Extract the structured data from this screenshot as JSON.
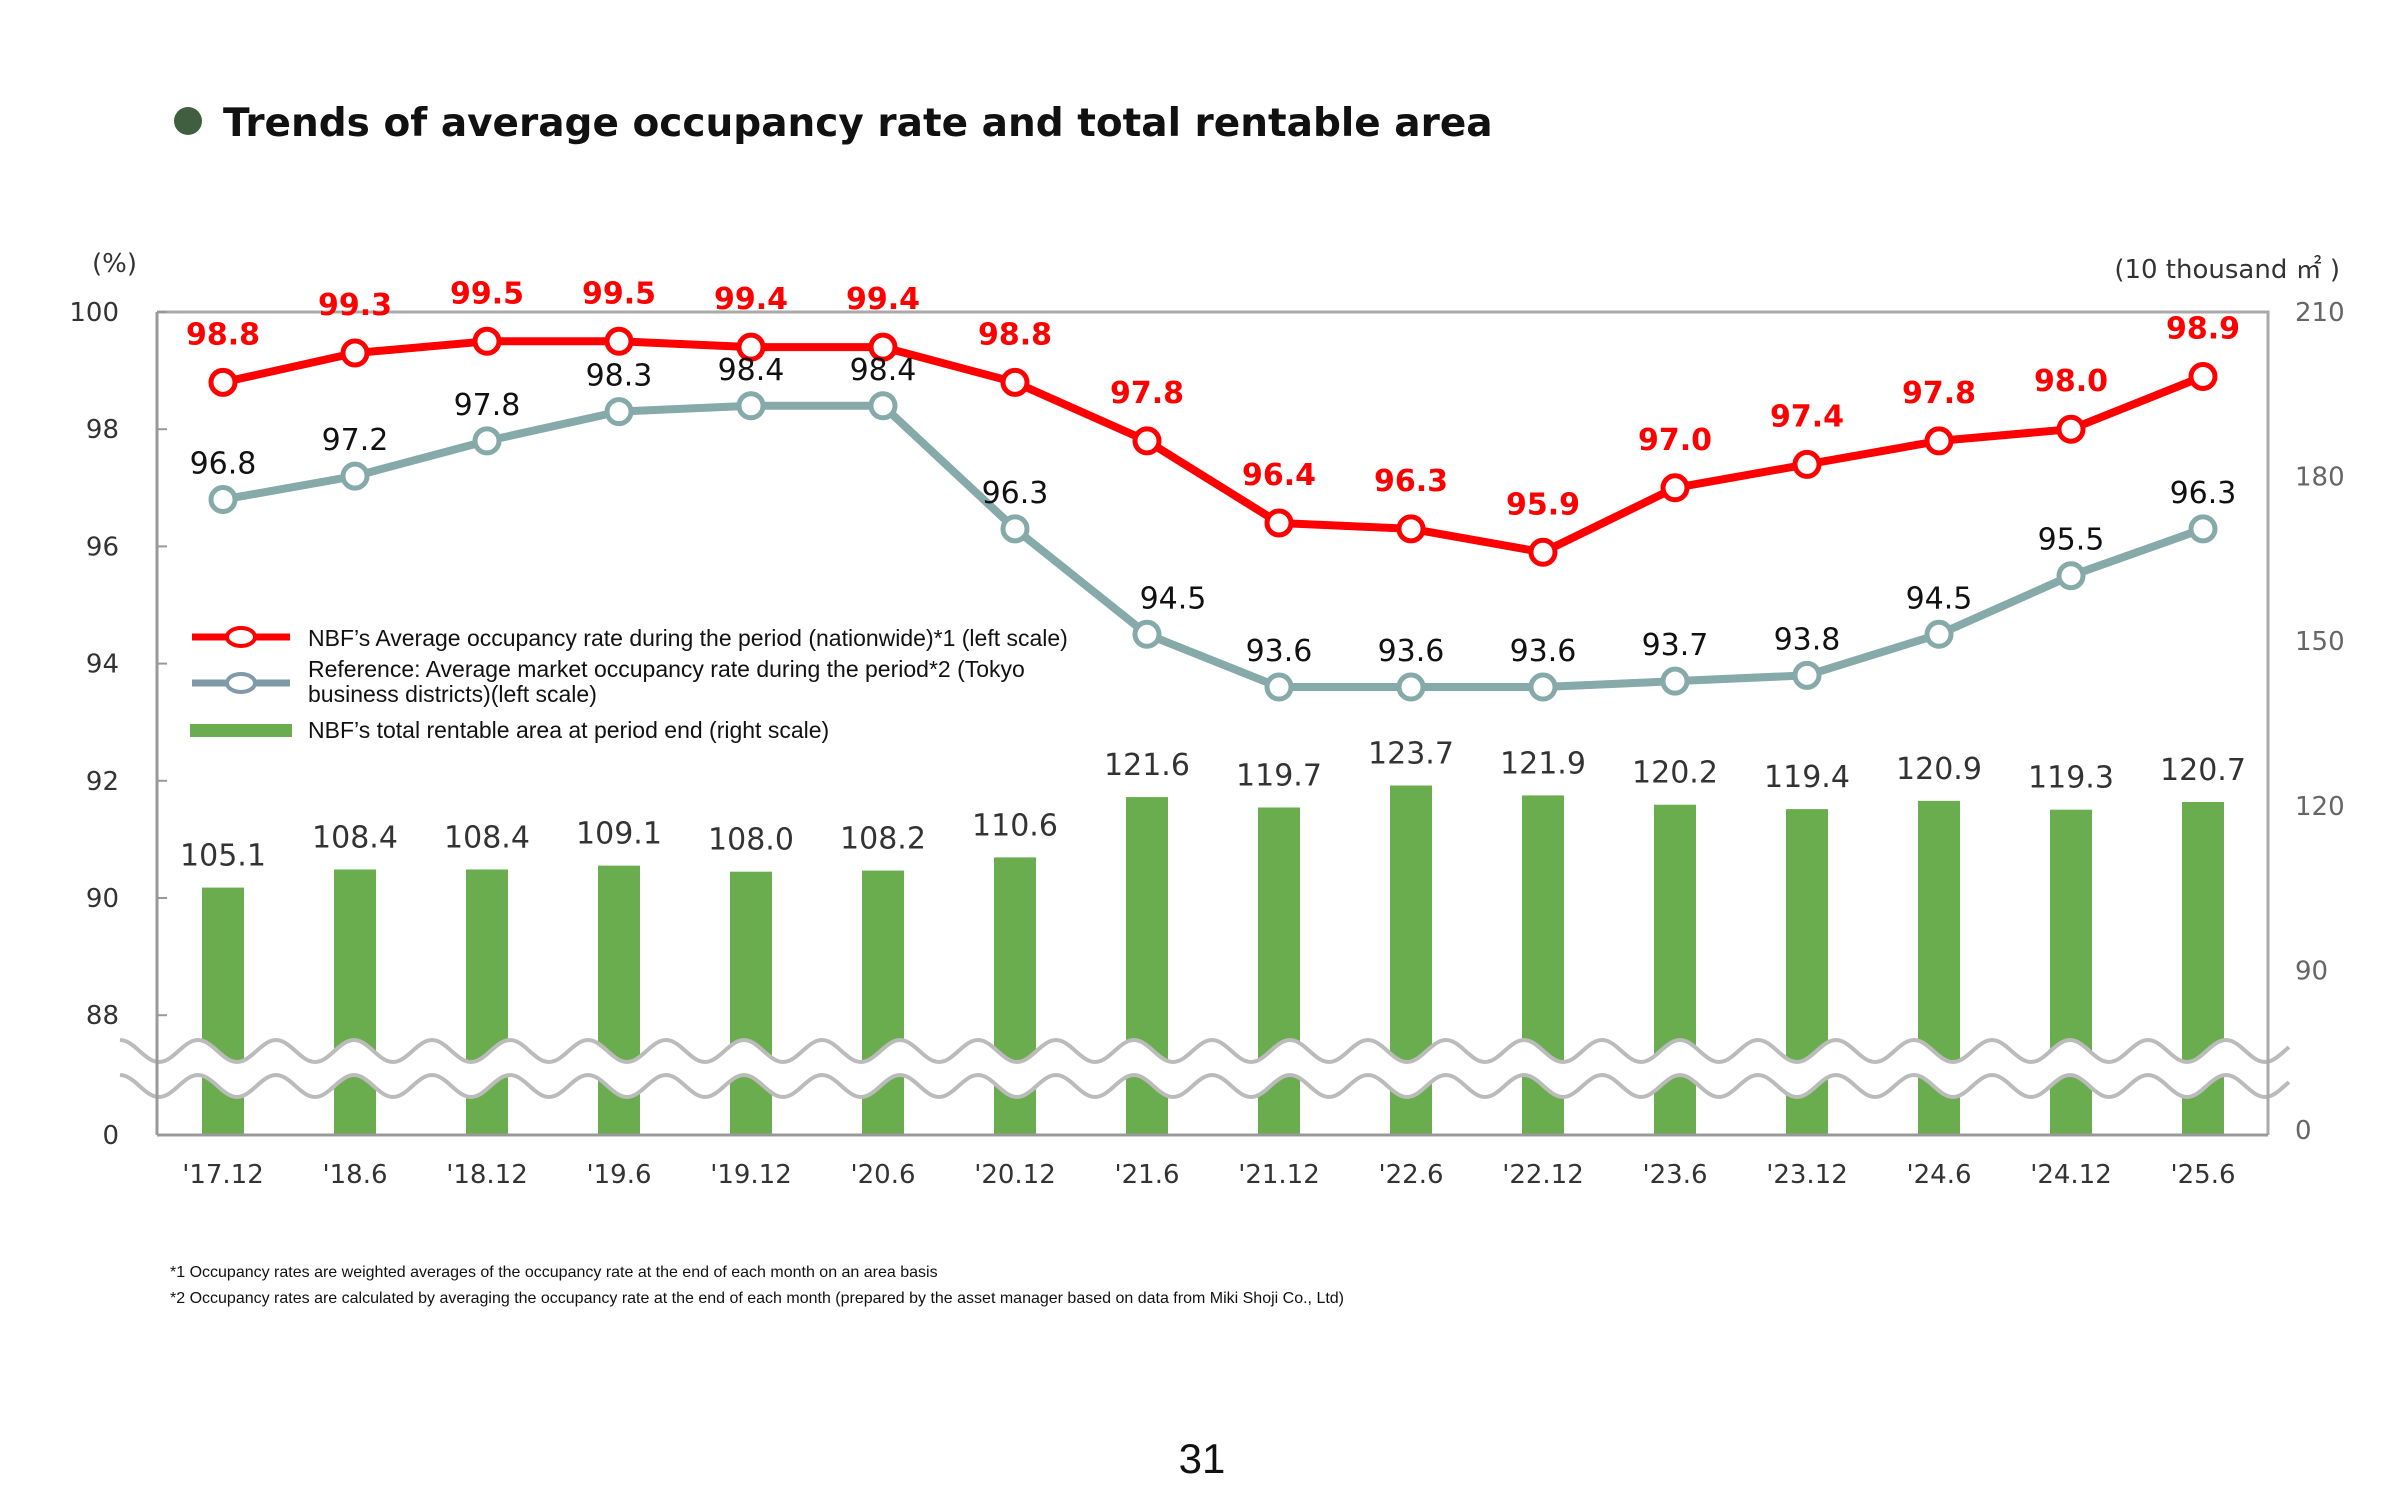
{
  "title": "Trends of average occupancy rate and total rentable area",
  "page_number": "31",
  "colors": {
    "bullet": "#3f5f3f",
    "nbf": "#ff0000",
    "market": "#86a9a9",
    "bars": "#6aad4f",
    "frame": "#aaaaaa"
  },
  "footnotes": [
    "*1 Occupancy rates are weighted averages of the occupancy rate at the end of each month on an area basis",
    "*2 Occupancy rates are calculated by averaging the occupancy rate at the end of each month (prepared by the asset manager based on data from Miki Shoji Co., Ltd)"
  ],
  "chart_data": {
    "type": "bar+line",
    "title": "Trends of average occupancy rate and total rentable area",
    "left_axis": {
      "label": "(%)",
      "ticks": [
        "100",
        "98",
        "96",
        "94",
        "92",
        "90",
        "88",
        "0"
      ],
      "range_shown": [
        88,
        100
      ],
      "broken": true
    },
    "right_axis": {
      "label": "(10 thousand ㎡ )",
      "ticks": [
        "210",
        "180",
        "150",
        "120",
        "90",
        "0"
      ],
      "range_shown": [
        90,
        210
      ],
      "broken": true
    },
    "categories": [
      "'17.12",
      "'18.6",
      "'18.12",
      "'19.6",
      "'19.12",
      "'20.6",
      "'20.12",
      "'21.6",
      "'21.12",
      "'22.6",
      "'22.12",
      "'23.6",
      "'23.12",
      "'24.6",
      "'24.12",
      "'25.6"
    ],
    "legend_placement": "middle-left",
    "series": [
      {
        "name": "NBF’s Average occupancy rate during the period (nationwide)*1  (left scale)",
        "legend_lines": [
          "NBF’s Average occupancy rate during the period (nationwide)*1  (left scale)"
        ],
        "type": "line",
        "axis": "left",
        "values": [
          98.8,
          99.3,
          99.5,
          99.5,
          99.4,
          99.4,
          98.8,
          97.8,
          96.4,
          96.3,
          95.9,
          97.0,
          97.4,
          97.8,
          98.0,
          98.9
        ],
        "labels": [
          "98.8",
          "99.3",
          "99.5",
          "99.5",
          "99.4",
          "99.4",
          "98.8",
          "97.8",
          "96.4",
          "96.3",
          "95.9",
          "97.0",
          "97.4",
          "97.8",
          "98.0",
          "98.9"
        ]
      },
      {
        "name": "Reference: Average market occupancy rate during the period*2 (Tokyo business districts)(left scale)",
        "legend_lines": [
          "Reference: Average market occupancy rate during the period*2 (Tokyo",
          "business districts)(left scale)"
        ],
        "type": "line",
        "axis": "left",
        "values": [
          96.8,
          97.2,
          97.8,
          98.3,
          98.4,
          98.4,
          96.3,
          94.5,
          93.6,
          93.6,
          93.6,
          93.7,
          93.8,
          94.5,
          95.5,
          96.3
        ],
        "labels": [
          "96.8",
          "97.2",
          "97.8",
          "98.3",
          "98.4",
          "98.4",
          "96.3",
          "94.5",
          "93.6",
          "93.6",
          "93.6",
          "93.7",
          "93.8",
          "94.5",
          "95.5",
          "96.3"
        ]
      },
      {
        "name": "NBF’s total rentable area at period end (right scale)",
        "legend_lines": [
          "NBF’s total rentable area at period end (right scale)"
        ],
        "type": "bar",
        "axis": "right",
        "values": [
          105.1,
          108.4,
          108.4,
          109.1,
          108.0,
          108.2,
          110.6,
          121.6,
          119.7,
          123.7,
          121.9,
          120.2,
          119.4,
          120.9,
          119.3,
          120.7
        ],
        "labels": [
          "105.1",
          "108.4",
          "108.4",
          "109.1",
          "108.0",
          "108.2",
          "110.6",
          "121.6",
          "119.7",
          "123.7",
          "121.9",
          "120.2",
          "119.4",
          "120.9",
          "119.3",
          "120.7"
        ]
      }
    ]
  }
}
